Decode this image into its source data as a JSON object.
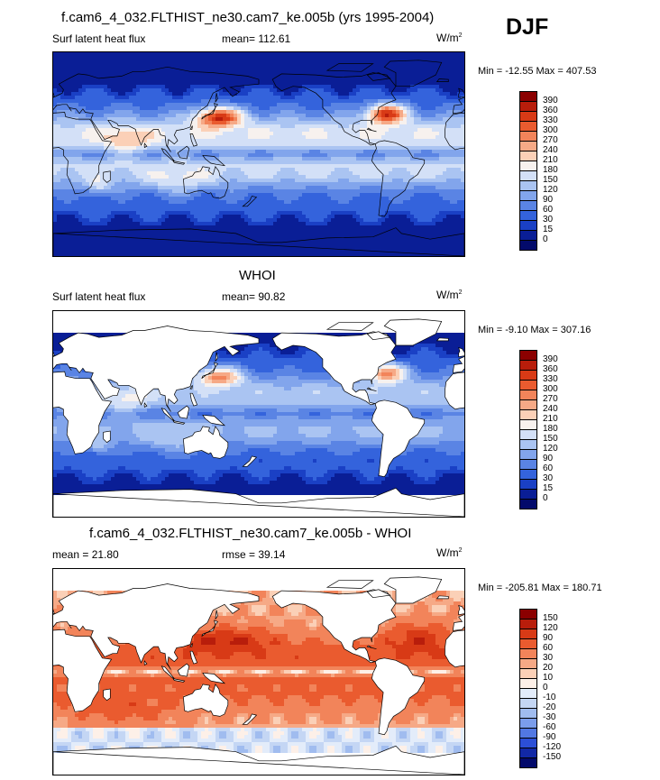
{
  "season": "DJF",
  "panels": [
    {
      "title": "f.cam6_4_032.FLTHIST_ne30.cam7_ke.005b (yrs 1995-2004)",
      "left_label": "Surf latent heat flux",
      "mean_label": "mean= 112.61",
      "units": "W/m",
      "units_exp": "2",
      "minmax": "Min = -12.55 Max = 407.53",
      "kind": "abs",
      "colorbar": {
        "labels": [
          "390",
          "360",
          "330",
          "300",
          "270",
          "240",
          "210",
          "180",
          "150",
          "120",
          "90",
          "60",
          "30",
          "15",
          "0"
        ],
        "colors": [
          "#8b0000",
          "#b81d0b",
          "#d83a16",
          "#ea5b2f",
          "#f2845a",
          "#f6a986",
          "#fbd0b7",
          "#f7f1ee",
          "#d3e0f7",
          "#aac4f2",
          "#82a5ec",
          "#5a84e4",
          "#3463dc",
          "#1a40c5",
          "#0a1e96",
          "#030a6b"
        ]
      }
    },
    {
      "title": "WHOI",
      "left_label": "Surf latent heat flux",
      "mean_label": "mean=  90.82",
      "units": "W/m",
      "units_exp": "2",
      "minmax": "Min =  -9.10 Max = 307.16",
      "kind": "obs",
      "colorbar": {
        "labels": [
          "390",
          "360",
          "330",
          "300",
          "270",
          "240",
          "210",
          "180",
          "150",
          "120",
          "90",
          "60",
          "30",
          "15",
          "0"
        ],
        "colors": [
          "#8b0000",
          "#b81d0b",
          "#d83a16",
          "#ea5b2f",
          "#f2845a",
          "#f6a986",
          "#fbd0b7",
          "#f7f1ee",
          "#d3e0f7",
          "#aac4f2",
          "#82a5ec",
          "#5a84e4",
          "#3463dc",
          "#1a40c5",
          "#0a1e96",
          "#030a6b"
        ]
      }
    },
    {
      "title": "f.cam6_4_032.FLTHIST_ne30.cam7_ke.005b - WHOI",
      "left_label": "mean =  21.80",
      "mean_label": "rmse =  39.14",
      "units": "W/m",
      "units_exp": "2",
      "minmax": "Min = -205.81 Max = 180.71",
      "kind": "diff",
      "colorbar": {
        "labels": [
          "150",
          "120",
          "90",
          "60",
          "30",
          "20",
          "10",
          "0",
          "-10",
          "-20",
          "-30",
          "-60",
          "-90",
          "-120",
          "-150"
        ],
        "colors": [
          "#8b0000",
          "#b81d0b",
          "#d83a16",
          "#ea5b2f",
          "#f2845a",
          "#f6a986",
          "#fbd0b7",
          "#fdf0e8",
          "#e3ecfa",
          "#c4d6f4",
          "#a0bcef",
          "#7b9deb",
          "#5278e3",
          "#2c4fd6",
          "#1228a6",
          "#030a6b"
        ]
      }
    }
  ]
}
